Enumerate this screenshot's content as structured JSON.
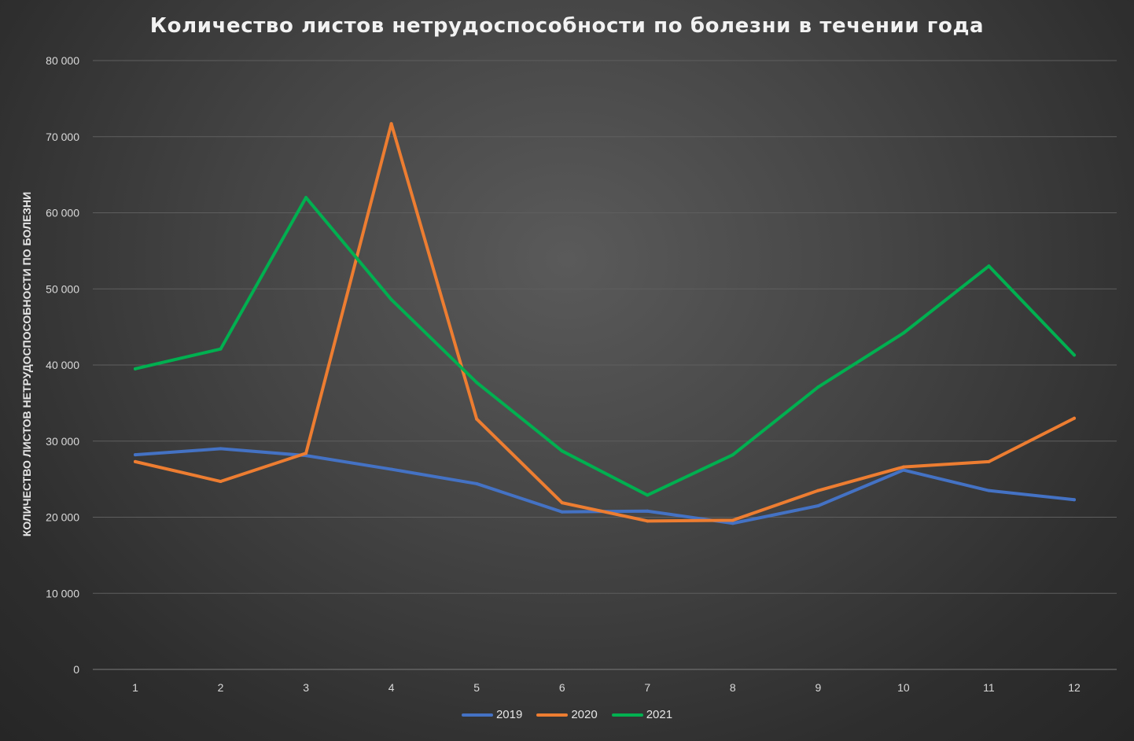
{
  "chart_data": {
    "type": "line",
    "title": "Количество листов нетрудоспособности по болезни в течении года",
    "xlabel": "",
    "ylabel": "КОЛИЧЕСТВО ЛИСТОВ НЕТРУДОСПОСОБНОСТИ ПО БОЛЕЗНИ",
    "categories": [
      "1",
      "2",
      "3",
      "4",
      "5",
      "6",
      "7",
      "8",
      "9",
      "10",
      "11",
      "12"
    ],
    "ylim": [
      0,
      80000
    ],
    "yticks": [
      0,
      10000,
      20000,
      30000,
      40000,
      50000,
      60000,
      70000,
      80000
    ],
    "ytick_labels": [
      "0",
      "10 000",
      "20 000",
      "30 000",
      "40 000",
      "50 000",
      "60 000",
      "70 000",
      "80 000"
    ],
    "grid": true,
    "legend_position": "bottom",
    "series": [
      {
        "name": "2019",
        "color": "#4472c4",
        "values": [
          28200,
          29000,
          28100,
          26300,
          24400,
          20700,
          20800,
          19200,
          21500,
          26200,
          23500,
          22300
        ]
      },
      {
        "name": "2020",
        "color": "#ed7d31",
        "values": [
          27300,
          24700,
          28400,
          71700,
          32900,
          21900,
          19500,
          19600,
          23500,
          26600,
          27300,
          33000
        ]
      },
      {
        "name": "2021",
        "color": "#00b050",
        "values": [
          39500,
          42100,
          62000,
          48600,
          37700,
          28700,
          22900,
          28200,
          37100,
          44200,
          53000,
          41300
        ]
      }
    ]
  }
}
